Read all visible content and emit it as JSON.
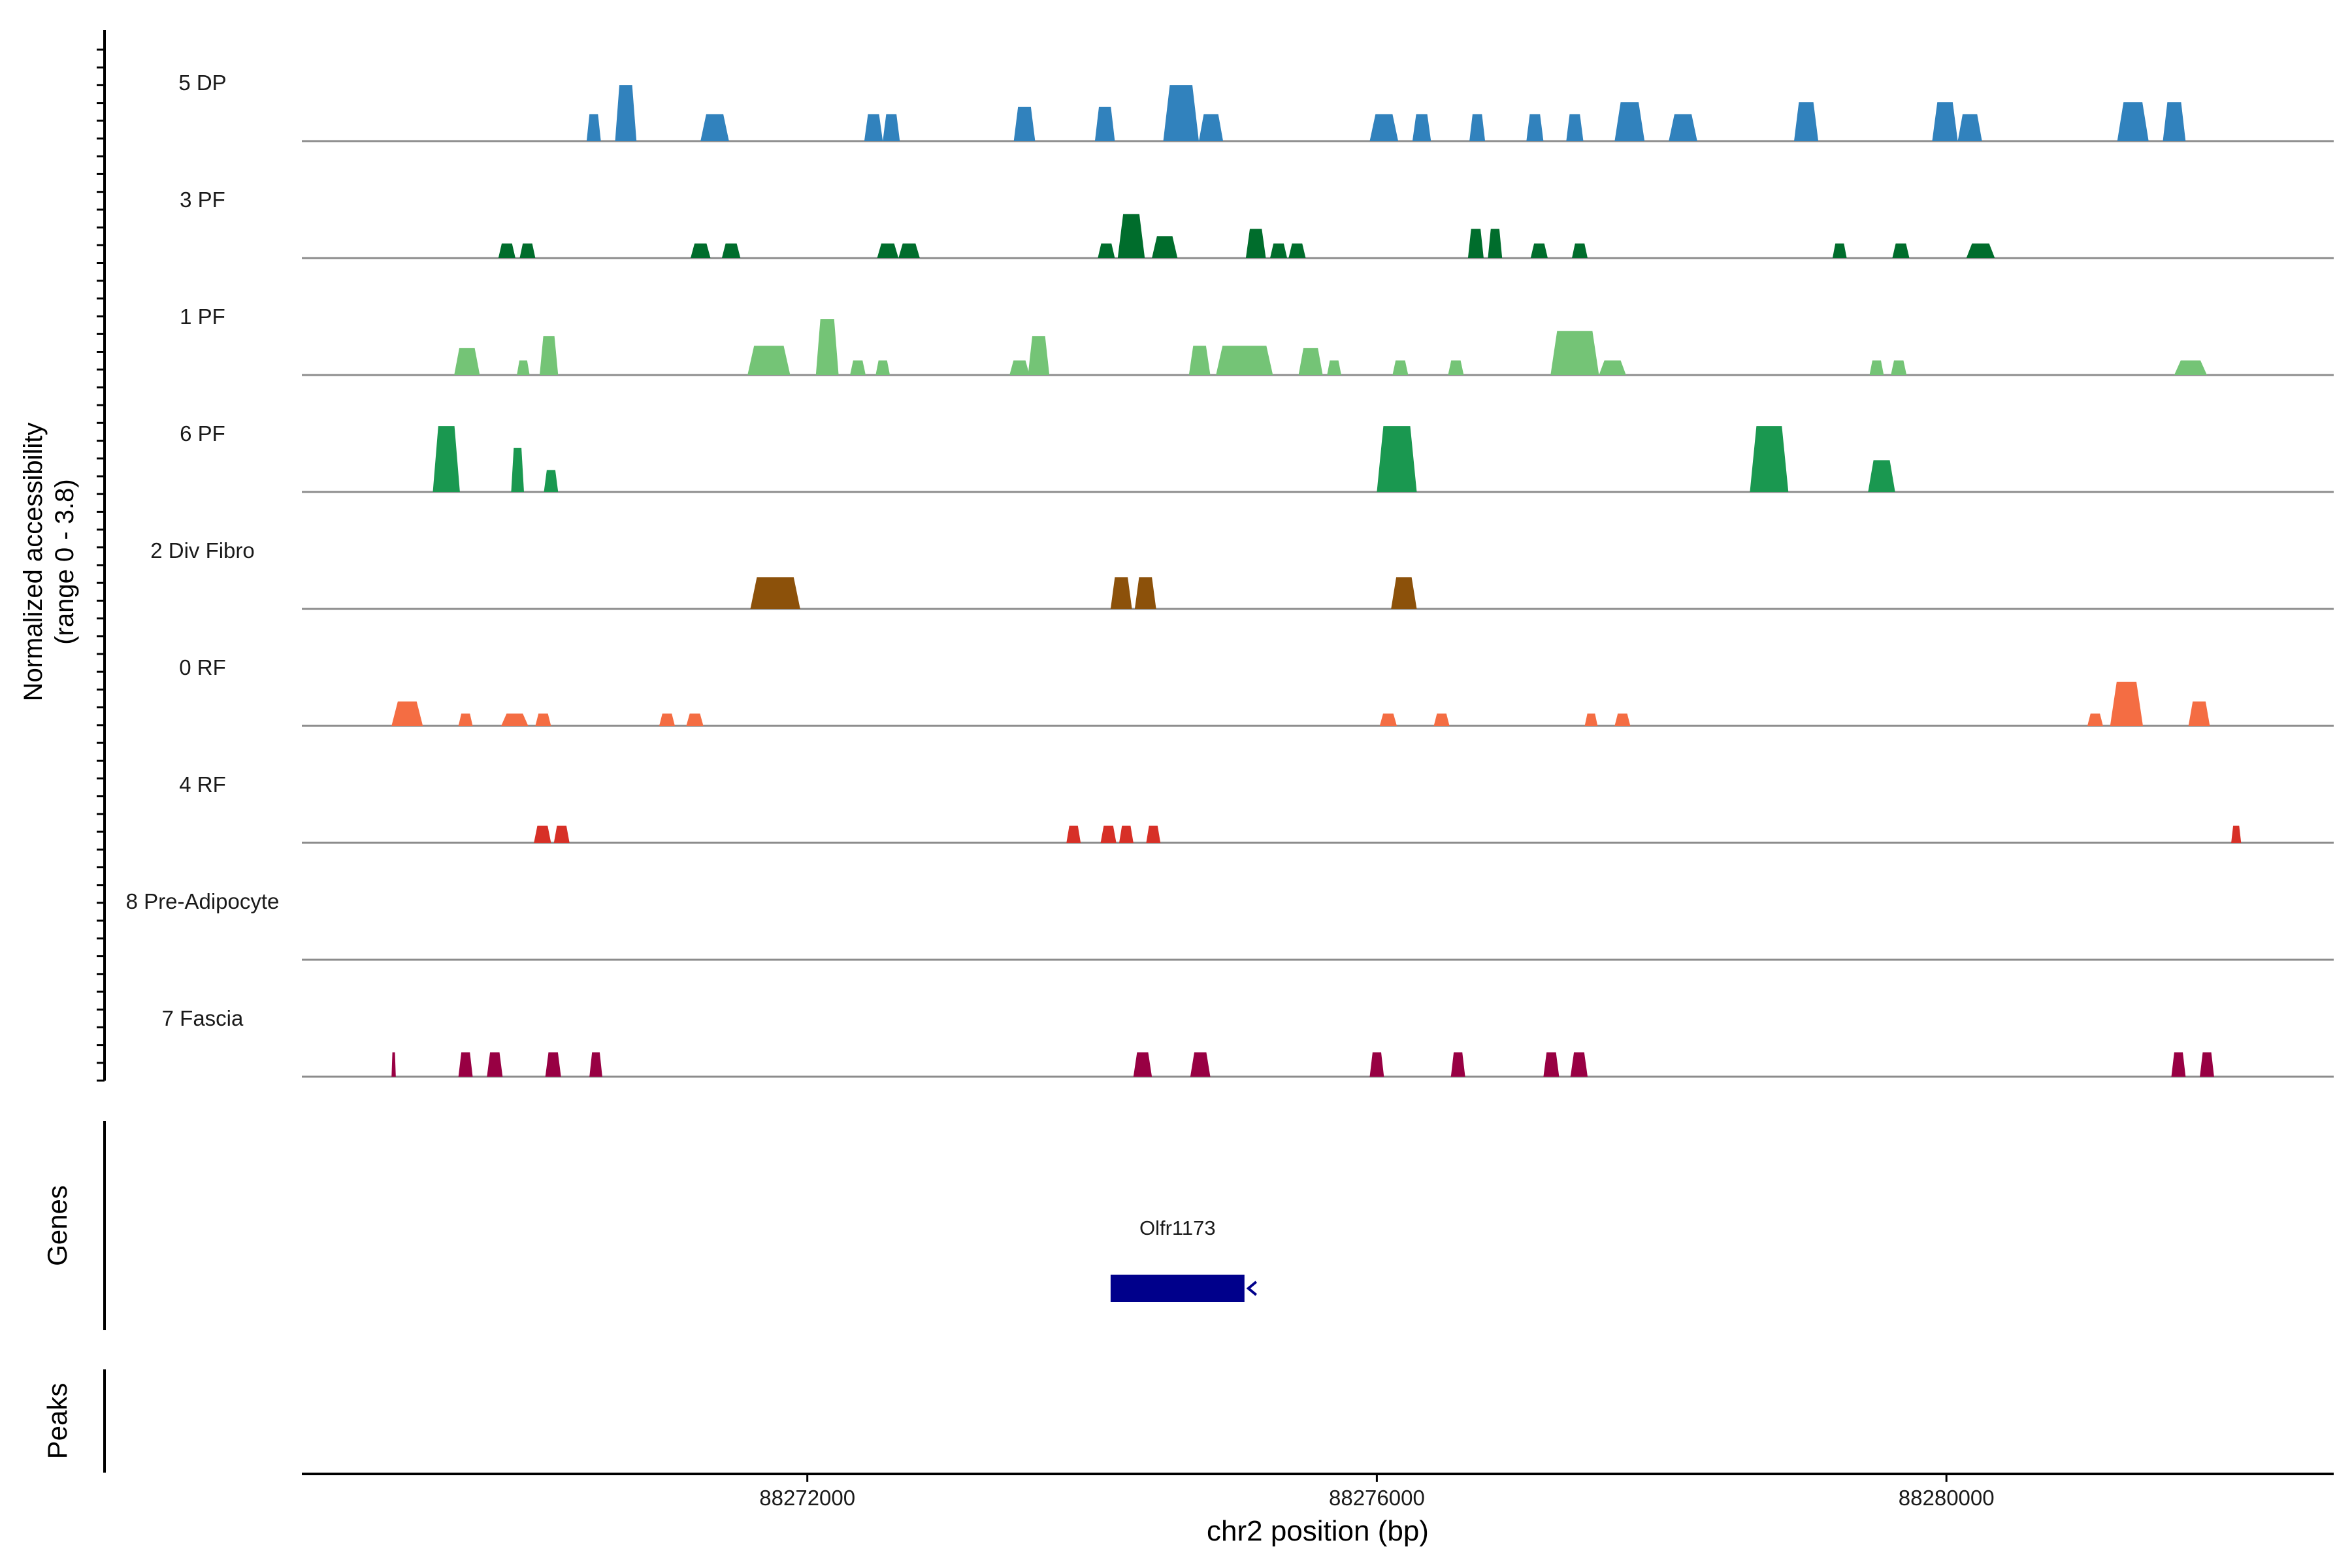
{
  "chart_data": {
    "type": "coverage",
    "xlabel": "chr2 position (bp)",
    "ylabel_line1": "Normalized accessibility",
    "ylabel_line2": "(range 0 - 3.8)",
    "yrange": [
      0,
      3.8
    ],
    "xlim": [
      88268450,
      88282720
    ],
    "xticks": [
      88272000,
      88276000,
      88280000
    ],
    "xtick_labels": [
      "88272000",
      "88276000",
      "88280000"
    ],
    "panel_labels": {
      "genes": "Genes",
      "peaks": "Peaks"
    },
    "tracks": [
      {
        "name": "5 DP",
        "color": "#3182bd",
        "peaks": [
          [
            88270450,
            88270550,
            1.1
          ],
          [
            88270650,
            88270800,
            2.3
          ],
          [
            88271250,
            88271450,
            1.1
          ],
          [
            88272400,
            88272530,
            1.1
          ],
          [
            88272530,
            88272650,
            1.1
          ],
          [
            88273450,
            88273600,
            1.4
          ],
          [
            88274020,
            88274160,
            1.4
          ],
          [
            88274500,
            88274750,
            2.3
          ],
          [
            88274750,
            88274920,
            1.1
          ],
          [
            88275950,
            88276150,
            1.1
          ],
          [
            88276250,
            88276380,
            1.1
          ],
          [
            88276650,
            88276760,
            1.1
          ],
          [
            88277050,
            88277170,
            1.1
          ],
          [
            88277330,
            88277450,
            1.1
          ],
          [
            88277670,
            88277880,
            1.6
          ],
          [
            88278050,
            88278250,
            1.1
          ],
          [
            88278930,
            88279100,
            1.6
          ],
          [
            88279900,
            88280080,
            1.6
          ],
          [
            88280080,
            88280250,
            1.1
          ],
          [
            88281200,
            88281420,
            1.6
          ],
          [
            88281520,
            88281680,
            1.6
          ]
        ]
      },
      {
        "name": "3 PF",
        "color": "#006d2c",
        "peaks": [
          [
            88269830,
            88269950,
            0.6
          ],
          [
            88269980,
            88270090,
            0.6
          ],
          [
            88271180,
            88271320,
            0.6
          ],
          [
            88271400,
            88271530,
            0.6
          ],
          [
            88272490,
            88272640,
            0.6
          ],
          [
            88272640,
            88272790,
            0.6
          ],
          [
            88274040,
            88274160,
            0.6
          ],
          [
            88274180,
            88274370,
            1.8
          ],
          [
            88274420,
            88274600,
            0.9
          ],
          [
            88275080,
            88275220,
            1.2
          ],
          [
            88275250,
            88275370,
            0.6
          ],
          [
            88275380,
            88275500,
            0.6
          ],
          [
            88276640,
            88276750,
            1.2
          ],
          [
            88276780,
            88276880,
            1.2
          ],
          [
            88277080,
            88277200,
            0.6
          ],
          [
            88277370,
            88277480,
            0.6
          ],
          [
            88279200,
            88279300,
            0.6
          ],
          [
            88279620,
            88279740,
            0.6
          ],
          [
            88280140,
            88280340,
            0.6
          ]
        ]
      },
      {
        "name": "1 PF",
        "color": "#74c476",
        "peaks": [
          [
            88269520,
            88269700,
            1.1
          ],
          [
            88269960,
            88270050,
            0.6
          ],
          [
            88270120,
            88270250,
            1.6
          ],
          [
            88271580,
            88271880,
            1.2
          ],
          [
            88272060,
            88272220,
            2.3
          ],
          [
            88272300,
            88272410,
            0.6
          ],
          [
            88272480,
            88272580,
            0.6
          ],
          [
            88273420,
            88273560,
            0.6
          ],
          [
            88273550,
            88273700,
            1.6
          ],
          [
            88274680,
            88274830,
            1.2
          ],
          [
            88274870,
            88275270,
            1.2
          ],
          [
            88275450,
            88275620,
            1.1
          ],
          [
            88275650,
            88275750,
            0.6
          ],
          [
            88276110,
            88276220,
            0.6
          ],
          [
            88276500,
            88276610,
            0.6
          ],
          [
            88277220,
            88277560,
            1.8
          ],
          [
            88277560,
            88277750,
            0.6
          ],
          [
            88279460,
            88279560,
            0.6
          ],
          [
            88279610,
            88279720,
            0.6
          ],
          [
            88281600,
            88281830,
            0.6
          ]
        ]
      },
      {
        "name": "6 PF",
        "color": "#1a9850",
        "peaks": [
          [
            88269370,
            88269560,
            2.7
          ],
          [
            88269920,
            88270010,
            1.8
          ],
          [
            88270150,
            88270250,
            0.9
          ],
          [
            88276000,
            88276280,
            2.7
          ],
          [
            88278620,
            88278890,
            2.7
          ],
          [
            88279450,
            88279640,
            1.3
          ]
        ]
      },
      {
        "name": "2 Div Fibro",
        "color": "#8c510a",
        "peaks": [
          [
            88271600,
            88271950,
            1.3
          ],
          [
            88274130,
            88274280,
            1.3
          ],
          [
            88274300,
            88274450,
            1.3
          ],
          [
            88276100,
            88276280,
            1.3
          ]
        ]
      },
      {
        "name": "0 RF",
        "color": "#f46d43",
        "peaks": [
          [
            88269080,
            88269300,
            1.0
          ],
          [
            88269550,
            88269650,
            0.5
          ],
          [
            88269850,
            88270040,
            0.5
          ],
          [
            88270090,
            88270200,
            0.5
          ],
          [
            88270960,
            88271070,
            0.5
          ],
          [
            88271150,
            88271270,
            0.5
          ],
          [
            88276020,
            88276140,
            0.5
          ],
          [
            88276400,
            88276510,
            0.5
          ],
          [
            88277460,
            88277550,
            0.5
          ],
          [
            88277670,
            88277780,
            0.5
          ],
          [
            88280990,
            88281100,
            0.5
          ],
          [
            88281150,
            88281380,
            1.8
          ],
          [
            88281700,
            88281850,
            1.0
          ]
        ]
      },
      {
        "name": "4 RF",
        "color": "#d73027",
        "peaks": [
          [
            88270080,
            88270200,
            0.7
          ],
          [
            88270220,
            88270330,
            0.7
          ],
          [
            88273820,
            88273920,
            0.7
          ],
          [
            88274060,
            88274170,
            0.7
          ],
          [
            88274190,
            88274290,
            0.7
          ],
          [
            88274380,
            88274480,
            0.7
          ],
          [
            88282000,
            88282070,
            0.7
          ]
        ]
      },
      {
        "name": "8 Pre-Adipocyte",
        "color": "#2b8cbe",
        "peaks": []
      },
      {
        "name": "7 Fascia",
        "color": "#980043",
        "peaks": [
          [
            88269080,
            88269110,
            1.0
          ],
          [
            88269550,
            88269650,
            1.0
          ],
          [
            88269750,
            88269860,
            1.0
          ],
          [
            88270160,
            88270270,
            1.0
          ],
          [
            88270470,
            88270560,
            1.0
          ],
          [
            88274290,
            88274420,
            1.0
          ],
          [
            88274690,
            88274830,
            1.0
          ],
          [
            88275950,
            88276050,
            1.0
          ],
          [
            88276520,
            88276620,
            1.0
          ],
          [
            88277170,
            88277280,
            1.0
          ],
          [
            88277360,
            88277480,
            1.0
          ],
          [
            88281580,
            88281680,
            1.0
          ],
          [
            88281780,
            88281880,
            1.0
          ]
        ]
      }
    ],
    "genes": [
      {
        "name": "Olfr1173",
        "start": 88274130,
        "end": 88275070,
        "strand": "-",
        "color": "#00008b"
      }
    ]
  }
}
